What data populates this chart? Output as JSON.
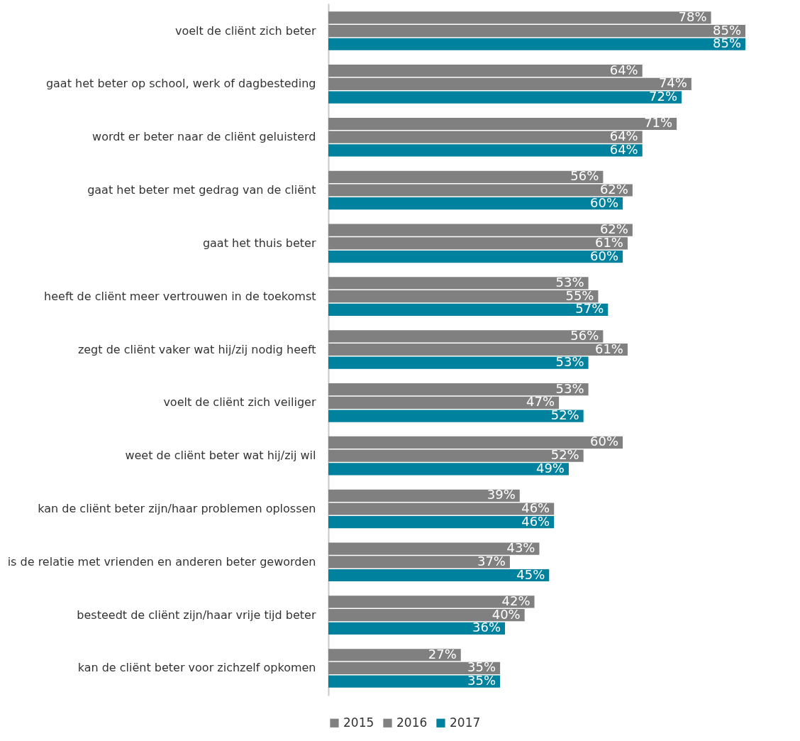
{
  "chart_data": {
    "type": "bar",
    "orientation": "horizontal",
    "legend": "bottom",
    "grid": false,
    "categories": [
      "voelt de cliënt zich beter",
      "gaat het beter op school, werk of dagbesteding",
      "wordt er beter naar de cliënt geluisterd",
      "gaat het beter met gedrag van de cliënt",
      "gaat het thuis beter",
      "heeft de cliënt meer vertrouwen in de toekomst",
      "zegt de cliënt vaker wat hij/zij nodig heeft",
      "voelt de cliënt zich veiliger",
      "weet de cliënt beter wat hij/zij wil",
      "kan de cliënt beter zijn/haar problemen oplossen",
      "is de relatie met vrienden en anderen beter geworden",
      "besteedt de cliënt zijn/haar vrije tijd beter",
      "kan de cliënt beter voor zichzelf opkomen"
    ],
    "series": [
      {
        "name": "2015",
        "color": "#808080",
        "values": [
          78,
          64,
          71,
          56,
          62,
          53,
          56,
          53,
          60,
          39,
          43,
          42,
          27
        ],
        "value_labels": [
          "78%",
          "64%",
          "71%",
          "56%",
          "62%",
          "53%",
          "56%",
          "53%",
          "60%",
          "39%",
          "43%",
          "42%",
          "27%"
        ]
      },
      {
        "name": "2016",
        "color": "#808080",
        "values": [
          85,
          74,
          64,
          62,
          61,
          55,
          61,
          47,
          52,
          46,
          37,
          40,
          35
        ],
        "value_labels": [
          "85%",
          "74%",
          "64%",
          "62%",
          "61%",
          "55%",
          "61%",
          "47%",
          "52%",
          "46%",
          "37%",
          "40%",
          "35%"
        ]
      },
      {
        "name": "2017",
        "color": "#00819e",
        "values": [
          85,
          72,
          64,
          60,
          60,
          57,
          53,
          52,
          49,
          46,
          45,
          36,
          35
        ],
        "value_labels": [
          "85%",
          "72%",
          "64%",
          "60%",
          "60%",
          "57%",
          "53%",
          "52%",
          "49%",
          "46%",
          "45%",
          "36%",
          "35%"
        ]
      }
    ]
  }
}
